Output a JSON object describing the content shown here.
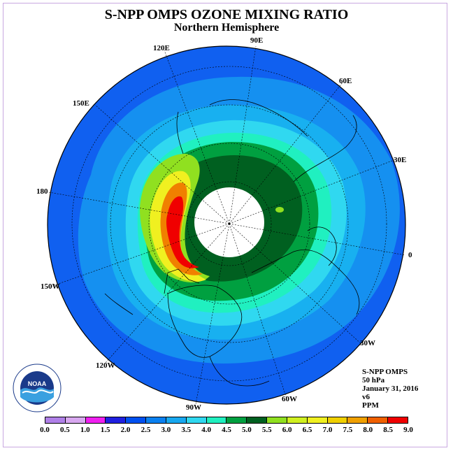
{
  "title": "S-NPP OMPS OZONE MIXING RATIO",
  "subtitle": "Northern Hemisphere",
  "longitude_labels": [
    "90E",
    "60E",
    "30E",
    "0",
    "30W",
    "60W",
    "90W",
    "120W",
    "150W",
    "180",
    "150E",
    "120E"
  ],
  "info": {
    "instrument": "S-NPP OMPS",
    "pressure": "50 hPa",
    "date": "January 31, 2016",
    "version": "v6",
    "units": "PPM"
  },
  "colorbar": {
    "ticks": [
      "0.0",
      "0.5",
      "1.0",
      "1.5",
      "2.0",
      "2.5",
      "3.0",
      "3.5",
      "4.0",
      "4.5",
      "5.0",
      "5.5",
      "6.0",
      "6.5",
      "7.0",
      "7.5",
      "8.0",
      "8.5",
      "9.0"
    ],
    "colors": [
      "#b080e8",
      "#d8a8f0",
      "#f020f0",
      "#2020e0",
      "#0050f0",
      "#0a80f0",
      "#18a8f0",
      "#30d8f0",
      "#20f0c0",
      "#00a040",
      "#006020",
      "#90e020",
      "#d0f020",
      "#f0f020",
      "#f0d000",
      "#f0a000",
      "#f06000",
      "#f00000",
      "#8b5a3c"
    ]
  },
  "logo_text": "NOAA"
}
